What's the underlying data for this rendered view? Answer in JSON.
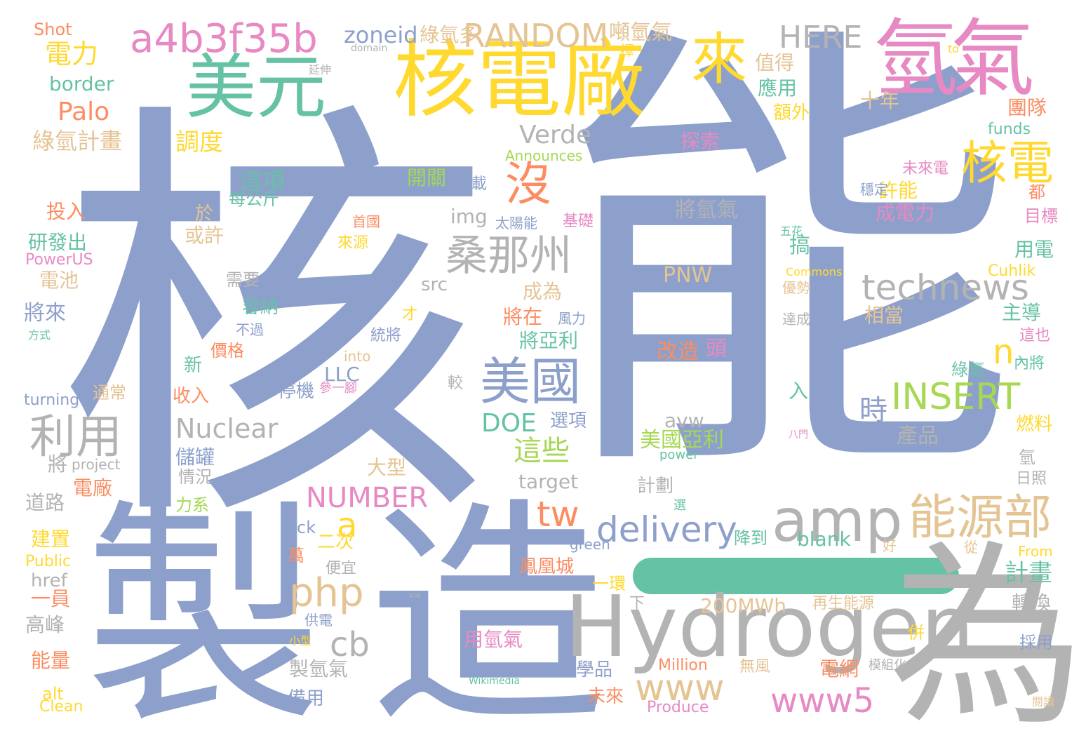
{
  "wordcloud": {
    "background": "#ffffff",
    "palette": {
      "blue": "#8da0cb",
      "green": "#66c2a5",
      "orange": "#fc8d62",
      "pink": "#e78ac3",
      "lime": "#a6d854",
      "yellow": "#ffd92f",
      "tan": "#e5c494",
      "gray": "#b3b3b3"
    },
    "words": [
      {
        "text": "核",
        "color": "#8da0cb"
      },
      {
        "text": "能",
        "color": "#8da0cb"
      },
      {
        "text": "製",
        "color": "#8da0cb"
      },
      {
        "text": "造",
        "color": "#8da0cb"
      },
      {
        "text": "為",
        "color": "#b3b3b3"
      },
      {
        "text": "Hydrogen",
        "color": "#b3b3b3"
      },
      {
        "text": "核電廠",
        "color": "#ffd92f"
      },
      {
        "text": "氫",
        "color": "#e78ac3"
      },
      {
        "text": "氣",
        "color": "#e78ac3"
      },
      {
        "text": "美元",
        "color": "#66c2a5"
      },
      {
        "text": "來",
        "color": "#ffd92f"
      },
      {
        "text": "a4b3f35b",
        "color": "#e78ac3"
      },
      {
        "text": "RANDOM",
        "color": "#e5c494"
      },
      {
        "text": "HERE",
        "color": "#b3b3b3"
      },
      {
        "text": "zoneid",
        "color": "#8da0cb"
      },
      {
        "text": "綠氫多",
        "color": "#e5c494"
      },
      {
        "text": "噸氫氣",
        "color": "#e5c494"
      },
      {
        "text": "Shot",
        "color": "#fc8d62"
      },
      {
        "text": "電力",
        "color": "#ffd92f"
      },
      {
        "text": "border",
        "color": "#66c2a5"
      },
      {
        "text": "Palo",
        "color": "#fc8d62"
      },
      {
        "text": "綠氫計畫",
        "color": "#e5c494"
      },
      {
        "text": "調度",
        "color": "#ffd92f"
      },
      {
        "text": "Verde",
        "color": "#b3b3b3"
      },
      {
        "text": "沒",
        "color": "#fc8d62"
      },
      {
        "text": "核電",
        "color": "#ffd92f"
      },
      {
        "text": "桑那州",
        "color": "#b3b3b3"
      },
      {
        "text": "technews",
        "color": "#b3b3b3"
      },
      {
        "text": "利用",
        "color": "#b3b3b3"
      },
      {
        "text": "美國",
        "color": "#8da0cb"
      },
      {
        "text": "INSERT",
        "color": "#a6d854"
      },
      {
        "text": "Nuclear",
        "color": "#b3b3b3"
      },
      {
        "text": "DOE",
        "color": "#66c2a5"
      },
      {
        "text": "amp",
        "color": "#b3b3b3"
      },
      {
        "text": "能源部",
        "color": "#e5c494"
      },
      {
        "text": "delivery",
        "color": "#8da0cb"
      },
      {
        "text": "tw",
        "color": "#fc8d62"
      },
      {
        "text": "a",
        "color": "#ffd92f"
      },
      {
        "text": "php",
        "color": "#e5c494"
      },
      {
        "text": "cb",
        "color": "#b3b3b3"
      },
      {
        "text": "www",
        "color": "#e5c494"
      },
      {
        "text": "www5",
        "color": "#e78ac3"
      },
      {
        "text": "NUMBER",
        "color": "#e78ac3"
      },
      {
        "text": "200MWh",
        "color": "#e5c494"
      },
      {
        "text": "用氫氣",
        "color": "#e78ac3"
      },
      {
        "text": "PNW",
        "color": "#e5c494"
      },
      {
        "text": "n",
        "color": "#ffd92f"
      },
      {
        "text": "時",
        "color": "#8da0cb"
      },
      {
        "text": "這些",
        "color": "#a6d854"
      },
      {
        "text": "美國亞利",
        "color": "#a6d854"
      },
      {
        "text": "值得",
        "color": "#e5c494"
      },
      {
        "text": "應用",
        "color": "#66c2a5"
      },
      {
        "text": "十年",
        "color": "#e5c494"
      },
      {
        "text": "額外",
        "color": "#ffd92f"
      },
      {
        "text": "團隊",
        "color": "#fc8d62"
      },
      {
        "text": "funds",
        "color": "#66c2a5"
      },
      {
        "text": "未來電",
        "color": "#e78ac3"
      },
      {
        "text": "許能",
        "color": "#ffd92f"
      },
      {
        "text": "成電力",
        "color": "#e78ac3"
      },
      {
        "text": "用電",
        "color": "#66c2a5"
      },
      {
        "text": "主導",
        "color": "#66c2a5"
      },
      {
        "text": "相當",
        "color": "#e5c494"
      },
      {
        "text": "燃料",
        "color": "#ffd92f"
      },
      {
        "text": "產品",
        "color": "#b3b3b3"
      },
      {
        "text": "計畫",
        "color": "#66c2a5"
      },
      {
        "text": "轉換",
        "color": "#b3b3b3"
      },
      {
        "text": "再生能源",
        "color": "#e5c494"
      },
      {
        "text": "Million",
        "color": "#fc8d62"
      },
      {
        "text": "Produce",
        "color": "#e78ac3"
      },
      {
        "text": "電網",
        "color": "#fc8d62"
      },
      {
        "text": "blank",
        "color": "#66c2a5"
      },
      {
        "text": "降到",
        "color": "#66c2a5"
      },
      {
        "text": "改造",
        "color": "#fc8d62"
      },
      {
        "text": "頭",
        "color": "#e78ac3"
      },
      {
        "text": "將氫氣",
        "color": "#b3b3b3"
      },
      {
        "text": "開關",
        "color": "#a6d854"
      },
      {
        "text": "基載",
        "color": "#8da0cb"
      },
      {
        "text": "這項",
        "color": "#66c2a5"
      },
      {
        "text": "每公斤",
        "color": "#66c2a5"
      },
      {
        "text": "img",
        "color": "#b3b3b3"
      },
      {
        "text": "太陽能",
        "color": "#8da0cb"
      },
      {
        "text": "基礎",
        "color": "#e78ac3"
      },
      {
        "text": "發電來",
        "color": "#8da0cb"
      },
      {
        "text": "成為",
        "color": "#e5c494"
      },
      {
        "text": "將在",
        "color": "#fc8d62"
      },
      {
        "text": "風力",
        "color": "#8da0cb"
      },
      {
        "text": "將亞利",
        "color": "#66c2a5"
      },
      {
        "text": "src",
        "color": "#b3b3b3"
      },
      {
        "text": "容納",
        "color": "#66c2a5"
      },
      {
        "text": "投入",
        "color": "#fc8d62"
      },
      {
        "text": "研發出",
        "color": "#66c2a5"
      },
      {
        "text": "電池",
        "color": "#e5c494"
      },
      {
        "text": "將來",
        "color": "#8da0cb"
      },
      {
        "text": "turning",
        "color": "#8da0cb"
      },
      {
        "text": "通常",
        "color": "#e5c494"
      },
      {
        "text": "收入",
        "color": "#fc8d62"
      },
      {
        "text": "LLC",
        "color": "#8da0cb"
      },
      {
        "text": "into",
        "color": "#e5c494"
      },
      {
        "text": "統將",
        "color": "#8da0cb"
      },
      {
        "text": "價格",
        "color": "#fc8d62"
      },
      {
        "text": "新",
        "color": "#66c2a5"
      },
      {
        "text": "儲罐",
        "color": "#8da0cb"
      },
      {
        "text": "大型",
        "color": "#e5c494"
      },
      {
        "text": "選項",
        "color": "#8da0cb"
      },
      {
        "text": "avw",
        "color": "#b3b3b3"
      },
      {
        "text": "target",
        "color": "#b3b3b3"
      },
      {
        "text": "計劃",
        "color": "#b3b3b3"
      },
      {
        "text": "ck",
        "color": "#8da0cb"
      },
      {
        "text": "二次",
        "color": "#ffd92f"
      },
      {
        "text": "萬",
        "color": "#fc8d62"
      },
      {
        "text": "鳳凰城",
        "color": "#fc8d62"
      },
      {
        "text": "一環",
        "color": "#ffd92f"
      },
      {
        "text": "便宜",
        "color": "#b3b3b3"
      },
      {
        "text": "供電",
        "color": "#8da0cb"
      },
      {
        "text": "製氫氣",
        "color": "#b3b3b3"
      },
      {
        "text": "備用",
        "color": "#8da0cb"
      },
      {
        "text": "化學品",
        "color": "#8da0cb"
      },
      {
        "text": "未來",
        "color": "#fc8d62"
      },
      {
        "text": "電廠",
        "color": "#fc8d62"
      },
      {
        "text": "道路",
        "color": "#b3b3b3"
      },
      {
        "text": "建置",
        "color": "#ffd92f"
      },
      {
        "text": "Public",
        "color": "#ffd92f"
      },
      {
        "text": "href",
        "color": "#b3b3b3"
      },
      {
        "text": "一員",
        "color": "#fc8d62"
      },
      {
        "text": "高峰",
        "color": "#b3b3b3"
      },
      {
        "text": "能量",
        "color": "#fc8d62"
      },
      {
        "text": "alt",
        "color": "#ffd92f"
      },
      {
        "text": "Clean",
        "color": "#ffd92f"
      },
      {
        "text": "project",
        "color": "#b3b3b3"
      },
      {
        "text": "情況",
        "color": "#b3b3b3"
      },
      {
        "text": "力系",
        "color": "#a6d854"
      },
      {
        "text": "PowerUS",
        "color": "#e78ac3"
      },
      {
        "text": "方式",
        "color": "#66c2a5"
      },
      {
        "text": "Announces",
        "color": "#a6d854"
      },
      {
        "text": "Commons",
        "color": "#ffd92f"
      },
      {
        "text": "Cuhlik",
        "color": "#ffd92f"
      },
      {
        "text": "From",
        "color": "#ffd92f"
      },
      {
        "text": "Wikimedia",
        "color": "#66c2a5"
      },
      {
        "text": "green",
        "color": "#8da0cb"
      },
      {
        "text": "power",
        "color": "#66c2a5"
      },
      {
        "text": "domain",
        "color": "#b3b3b3"
      },
      {
        "text": "to",
        "color": "#ffd92f"
      },
      {
        "text": "via",
        "color": "#b3b3b3"
      },
      {
        "text": "於",
        "color": "#e5c494"
      },
      {
        "text": "或許",
        "color": "#e5c494"
      },
      {
        "text": "需要",
        "color": "#b3b3b3"
      },
      {
        "text": "不過",
        "color": "#8da0cb"
      },
      {
        "text": "首國",
        "color": "#fc8d62"
      },
      {
        "text": "來源",
        "color": "#ffd92f"
      },
      {
        "text": "才",
        "color": "#ffd92f"
      },
      {
        "text": "參一腳",
        "color": "#e78ac3"
      },
      {
        "text": "較",
        "color": "#b3b3b3"
      },
      {
        "text": "停機",
        "color": "#8da0cb"
      },
      {
        "text": "入",
        "color": "#66c2a5"
      },
      {
        "text": "下",
        "color": "#b3b3b3"
      },
      {
        "text": "小型",
        "color": "#ffd92f"
      },
      {
        "text": "探索",
        "color": "#e78ac3"
      },
      {
        "text": "延伸",
        "color": "#b3b3b3"
      },
      {
        "text": "擇",
        "color": "#ffd92f"
      },
      {
        "text": "穩定",
        "color": "#8da0cb"
      },
      {
        "text": "都",
        "color": "#fc8d62"
      },
      {
        "text": "目標",
        "color": "#e78ac3"
      },
      {
        "text": "五花",
        "color": "#66c2a5"
      },
      {
        "text": "優勢",
        "color": "#e5c494"
      },
      {
        "text": "達成",
        "color": "#b3b3b3"
      },
      {
        "text": "這也",
        "color": "#e78ac3"
      },
      {
        "text": "內將",
        "color": "#66c2a5"
      },
      {
        "text": "綠氫",
        "color": "#66c2a5"
      },
      {
        "text": "八門",
        "color": "#e78ac3"
      },
      {
        "text": "氫",
        "color": "#b3b3b3"
      },
      {
        "text": "日照",
        "color": "#b3b3b3"
      },
      {
        "text": "好",
        "color": "#e5c494"
      },
      {
        "text": "從",
        "color": "#e5c494"
      },
      {
        "text": "併",
        "color": "#ffd92f"
      },
      {
        "text": "採用",
        "color": "#8da0cb"
      },
      {
        "text": "閱讀",
        "color": "#e5c494"
      },
      {
        "text": "模組化",
        "color": "#b3b3b3"
      },
      {
        "text": "無風",
        "color": "#e5c494"
      },
      {
        "text": "選",
        "color": "#66c2a5"
      },
      {
        "text": "將",
        "color": "#b3b3b3"
      },
      {
        "text": "搞",
        "color": "#66c2a5"
      }
    ]
  }
}
